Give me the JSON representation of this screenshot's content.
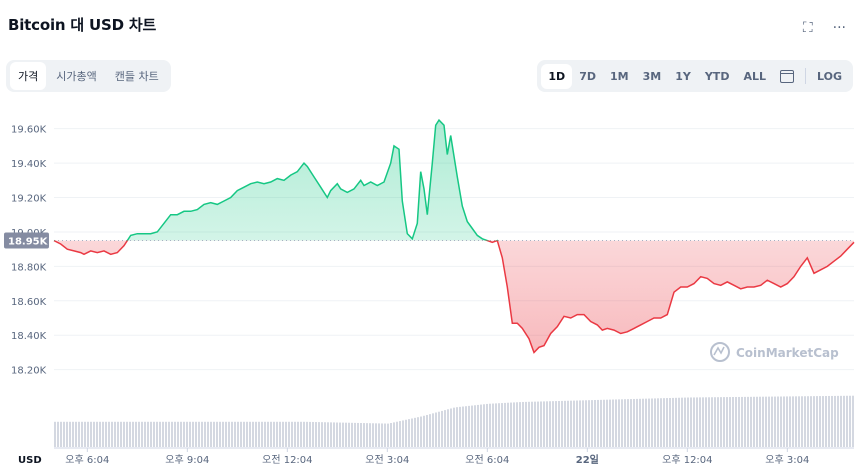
{
  "header": {
    "title": "Bitcoin 대 USD 차트",
    "fullscreen_icon": "fullscreen-icon",
    "more_icon": "more-icon"
  },
  "tabs": [
    {
      "label": "가격",
      "active": true
    },
    {
      "label": "시가총액",
      "active": false
    },
    {
      "label": "캔들 차트",
      "active": false
    }
  ],
  "ranges": [
    {
      "label": "1D",
      "active": true
    },
    {
      "label": "7D",
      "active": false
    },
    {
      "label": "1M",
      "active": false
    },
    {
      "label": "3M",
      "active": false
    },
    {
      "label": "1Y",
      "active": false
    },
    {
      "label": "YTD",
      "active": false
    },
    {
      "label": "ALL",
      "active": false
    }
  ],
  "calendar_icon": "calendar-icon",
  "log_label": "LOG",
  "watermark": "CoinMarketCap",
  "currency_label": "USD",
  "colors": {
    "up": "#16c784",
    "down": "#ea3943",
    "grid": "#eff2f5",
    "ref_tag": "#858ca2",
    "volume": "#d4d8e1"
  },
  "chart_data": {
    "type": "area",
    "title": "Bitcoin 대 USD 차트",
    "reference_value": 18950,
    "reference_label": "18.95K",
    "ylim": [
      18140,
      19720
    ],
    "y_ticks": [
      {
        "value": 18200,
        "label": "18.20K"
      },
      {
        "value": 18400,
        "label": "18.40K"
      },
      {
        "value": 18600,
        "label": "18.60K"
      },
      {
        "value": 18800,
        "label": "18.80K"
      },
      {
        "value": 19000,
        "label": "19.00K"
      },
      {
        "value": 19200,
        "label": "19.20K"
      },
      {
        "value": 19400,
        "label": "19.40K"
      },
      {
        "value": 19600,
        "label": "19.60K"
      }
    ],
    "x_ticks": [
      {
        "t": 1.0,
        "label": "오후 6:04",
        "bold": false
      },
      {
        "t": 4.0,
        "label": "오후 9:04",
        "bold": false
      },
      {
        "t": 7.0,
        "label": "오전 12:04",
        "bold": false
      },
      {
        "t": 10.0,
        "label": "오전 3:04",
        "bold": false
      },
      {
        "t": 13.0,
        "label": "오전 6:04",
        "bold": false
      },
      {
        "t": 16.0,
        "label": "22일",
        "bold": true
      },
      {
        "t": 19.0,
        "label": "오후 12:04",
        "bold": false
      },
      {
        "t": 22.0,
        "label": "오후 3:04",
        "bold": false
      }
    ],
    "series": [
      {
        "points": [
          [
            0.0,
            18950
          ],
          [
            0.2,
            18930
          ],
          [
            0.4,
            18900
          ],
          [
            0.6,
            18890
          ],
          [
            0.8,
            18880
          ],
          [
            0.9,
            18870
          ],
          [
            1.1,
            18890
          ],
          [
            1.3,
            18880
          ],
          [
            1.5,
            18890
          ],
          [
            1.7,
            18870
          ],
          [
            1.9,
            18880
          ],
          [
            2.1,
            18920
          ],
          [
            2.3,
            18980
          ],
          [
            2.5,
            18990
          ],
          [
            2.7,
            18990
          ],
          [
            2.9,
            18990
          ],
          [
            3.1,
            19000
          ],
          [
            3.3,
            19050
          ],
          [
            3.5,
            19100
          ],
          [
            3.7,
            19100
          ],
          [
            3.9,
            19120
          ],
          [
            4.1,
            19120
          ],
          [
            4.3,
            19130
          ],
          [
            4.5,
            19160
          ],
          [
            4.7,
            19170
          ],
          [
            4.9,
            19160
          ],
          [
            5.1,
            19180
          ],
          [
            5.3,
            19200
          ],
          [
            5.5,
            19240
          ],
          [
            5.7,
            19260
          ],
          [
            5.9,
            19280
          ],
          [
            6.1,
            19290
          ],
          [
            6.3,
            19280
          ],
          [
            6.5,
            19290
          ],
          [
            6.7,
            19310
          ],
          [
            6.9,
            19300
          ],
          [
            7.1,
            19330
          ],
          [
            7.3,
            19350
          ],
          [
            7.5,
            19400
          ],
          [
            7.6,
            19380
          ],
          [
            7.8,
            19320
          ],
          [
            8.0,
            19260
          ],
          [
            8.2,
            19200
          ],
          [
            8.3,
            19240
          ],
          [
            8.5,
            19280
          ],
          [
            8.6,
            19250
          ],
          [
            8.8,
            19230
          ],
          [
            9.0,
            19250
          ],
          [
            9.2,
            19300
          ],
          [
            9.3,
            19270
          ],
          [
            9.5,
            19290
          ],
          [
            9.7,
            19270
          ],
          [
            9.9,
            19290
          ],
          [
            10.1,
            19400
          ],
          [
            10.2,
            19500
          ],
          [
            10.35,
            19480
          ],
          [
            10.45,
            19180
          ],
          [
            10.6,
            18990
          ],
          [
            10.75,
            18960
          ],
          [
            10.9,
            19050
          ],
          [
            11.0,
            19350
          ],
          [
            11.1,
            19250
          ],
          [
            11.2,
            19100
          ],
          [
            11.35,
            19400
          ],
          [
            11.45,
            19620
          ],
          [
            11.55,
            19650
          ],
          [
            11.7,
            19620
          ],
          [
            11.8,
            19450
          ],
          [
            11.9,
            19560
          ],
          [
            12.0,
            19440
          ],
          [
            12.1,
            19320
          ],
          [
            12.25,
            19150
          ],
          [
            12.4,
            19060
          ],
          [
            12.55,
            19020
          ],
          [
            12.7,
            18980
          ],
          [
            12.85,
            18960
          ],
          [
            13.0,
            18950
          ],
          [
            13.15,
            18940
          ],
          [
            13.3,
            18950
          ],
          [
            13.45,
            18850
          ],
          [
            13.6,
            18680
          ],
          [
            13.75,
            18470
          ],
          [
            13.9,
            18470
          ],
          [
            14.05,
            18440
          ],
          [
            14.25,
            18380
          ],
          [
            14.4,
            18300
          ],
          [
            14.55,
            18330
          ],
          [
            14.7,
            18340
          ],
          [
            14.9,
            18410
          ],
          [
            15.1,
            18450
          ],
          [
            15.3,
            18510
          ],
          [
            15.5,
            18500
          ],
          [
            15.7,
            18520
          ],
          [
            15.9,
            18520
          ],
          [
            16.1,
            18480
          ],
          [
            16.3,
            18460
          ],
          [
            16.45,
            18430
          ],
          [
            16.6,
            18440
          ],
          [
            16.8,
            18430
          ],
          [
            17.0,
            18410
          ],
          [
            17.2,
            18420
          ],
          [
            17.4,
            18440
          ],
          [
            17.6,
            18460
          ],
          [
            17.8,
            18480
          ],
          [
            18.0,
            18500
          ],
          [
            18.2,
            18500
          ],
          [
            18.4,
            18520
          ],
          [
            18.6,
            18650
          ],
          [
            18.8,
            18680
          ],
          [
            19.0,
            18680
          ],
          [
            19.2,
            18700
          ],
          [
            19.4,
            18740
          ],
          [
            19.6,
            18730
          ],
          [
            19.8,
            18700
          ],
          [
            20.0,
            18690
          ],
          [
            20.2,
            18710
          ],
          [
            20.4,
            18690
          ],
          [
            20.6,
            18670
          ],
          [
            20.8,
            18680
          ],
          [
            21.0,
            18680
          ],
          [
            21.2,
            18690
          ],
          [
            21.4,
            18720
          ],
          [
            21.6,
            18700
          ],
          [
            21.8,
            18680
          ],
          [
            22.0,
            18700
          ],
          [
            22.2,
            18740
          ],
          [
            22.4,
            18800
          ],
          [
            22.6,
            18850
          ],
          [
            22.8,
            18760
          ],
          [
            23.0,
            18780
          ],
          [
            23.2,
            18800
          ],
          [
            23.4,
            18830
          ],
          [
            23.6,
            18860
          ],
          [
            23.8,
            18900
          ],
          [
            24.0,
            18940
          ]
        ]
      }
    ],
    "volume": [
      [
        0,
        0.28
      ],
      [
        7.5,
        0.28
      ],
      [
        10.0,
        0.26
      ],
      [
        11.0,
        0.34
      ],
      [
        12.0,
        0.44
      ],
      [
        13.0,
        0.48
      ],
      [
        14.0,
        0.5
      ],
      [
        16.0,
        0.52
      ],
      [
        19.0,
        0.55
      ],
      [
        24.0,
        0.57
      ]
    ]
  }
}
